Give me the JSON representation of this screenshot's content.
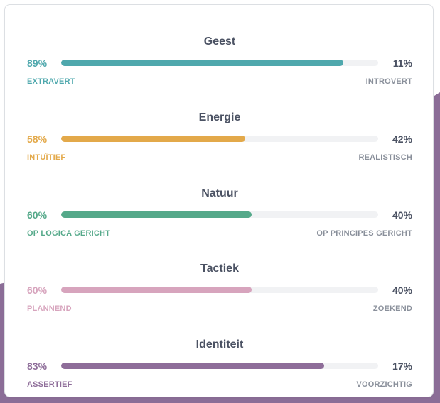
{
  "colors": {
    "background_accent": "#8b6d97",
    "track": "#f1f2f4"
  },
  "traits": [
    {
      "title": "Geest",
      "left_percent": "89%",
      "right_percent": "11%",
      "left_label": "EXTRAVERT",
      "right_label": "INTROVERT",
      "fill_fraction": 0.89,
      "color": "#4fa8ad"
    },
    {
      "title": "Energie",
      "left_percent": "58%",
      "right_percent": "42%",
      "left_label": "INTUÏTIEF",
      "right_label": "REALISTISCH",
      "fill_fraction": 0.58,
      "color": "#e3a94a"
    },
    {
      "title": "Natuur",
      "left_percent": "60%",
      "right_percent": "40%",
      "left_label": "OP LOGICA GERICHT",
      "right_label": "OP PRINCIPES GERICHT",
      "fill_fraction": 0.6,
      "color": "#55a98a"
    },
    {
      "title": "Tactiek",
      "left_percent": "60%",
      "right_percent": "40%",
      "left_label": "PLANNEND",
      "right_label": "ZOEKEND",
      "fill_fraction": 0.6,
      "color": "#d7a4bd"
    },
    {
      "title": "Identiteit",
      "left_percent": "83%",
      "right_percent": "17%",
      "left_label": "ASSERTIEF",
      "right_label": "VOORZICHTIG",
      "fill_fraction": 0.83,
      "color": "#8e6d99"
    }
  ]
}
